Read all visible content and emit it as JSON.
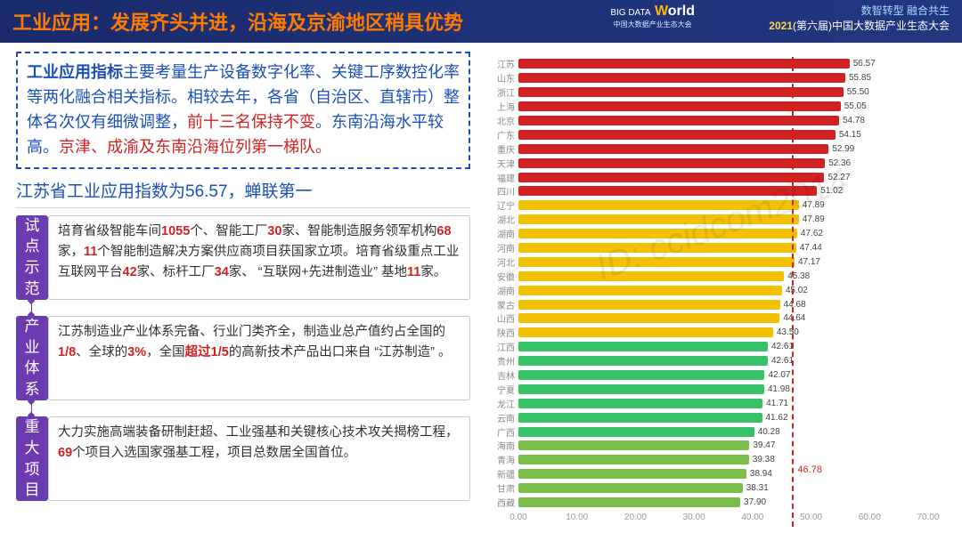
{
  "header": {
    "title": "工业应用：发展齐头并进，沿海及京渝地区稍具优势",
    "logo_big": "BIG DATA",
    "logo_world": "World",
    "logo_sub": "中国大数据产业生态大会",
    "right1": "数智转型  融合共生",
    "right2_pre": "2021",
    "right2_mid": "(第六届)",
    "right2_suf": "中国大数据产业生态大会"
  },
  "summary": {
    "lead": "工业应用指标",
    "t1": "主要考量生产设备数字化率、关键工序数控化率等两化融合相关指标。相较去年，各省（自治区、直辖市）整体名次仅有细微调整，",
    "r1": "前十三名保持不变",
    "t2": "。东南沿海水平较高。",
    "r2": "京津、成渝及东南沿海位列第一梯队。"
  },
  "subhead": "江苏省工业应用指数为56.57，蝉联第一",
  "blocks": [
    {
      "tag": "试点示范",
      "html": "培育省级智能车间<span class='r'>1055</span>个、智能工厂<span class='r'>30</span>家、智能制造服务领军机构<span class='r'>68</span>家，<span class='r'>11</span>个智能制造解决方案供应商项目获国家立项。培育省级重点工业互联网平台<span class='r'>42</span>家、标杆工厂<span class='r'>34</span>家、 “互联网+先进制造业” 基地<span class='r'>11</span>家。"
    },
    {
      "tag": "产业体系",
      "html": "江苏制造业产业体系完备、行业门类齐全，制造业总产值约占全国的<span class='r'>1/8</span>、全球的<span class='r'>3%</span>，全国<span class='r'>超过1/5</span>的高新技术产品出口来自 “江苏制造” 。"
    },
    {
      "tag": "重大项目",
      "html": "大力实施高端装备研制赶超、工业强基和关键核心技术攻关揭榜工程，<span class='r'>69</span>个项目入选国家强基工程，项目总数居全国首位。"
    }
  ],
  "chart": {
    "type": "horizontal-bar",
    "xlim": [
      0,
      70
    ],
    "ticks": [
      0,
      10,
      20,
      30,
      40,
      50,
      60,
      70
    ],
    "avg": 46.78,
    "background": "#ffffff",
    "categories": [
      "江苏",
      "山东",
      "浙江",
      "上海",
      "北京",
      "广东",
      "重庆",
      "天津",
      "福建",
      "四川",
      "辽宁",
      "湖北",
      "湖南",
      "河南",
      "河北",
      "安徽",
      "湖南",
      "蒙古",
      "山西",
      "陕西",
      "江西",
      "贵州",
      "吉林",
      "宁夏",
      "龙江",
      "云南",
      "广西",
      "海南",
      "青海",
      "新疆",
      "甘肃",
      "西藏"
    ],
    "values": [
      56.57,
      55.85,
      55.5,
      55.05,
      54.78,
      54.15,
      52.99,
      52.36,
      52.27,
      51.02,
      47.89,
      47.89,
      47.62,
      47.44,
      47.17,
      45.38,
      45.02,
      44.68,
      44.64,
      43.5,
      42.61,
      42.61,
      42.07,
      41.98,
      41.71,
      41.62,
      40.28,
      39.47,
      39.38,
      38.94,
      38.31,
      37.9
    ],
    "colors": [
      "#d12222",
      "#d12222",
      "#d12222",
      "#d12222",
      "#d12222",
      "#d12222",
      "#d12222",
      "#d12222",
      "#d12222",
      "#d12222",
      "#f2c200",
      "#f2c200",
      "#f2c200",
      "#f2c200",
      "#f2c200",
      "#f2c200",
      "#f2c200",
      "#f2c200",
      "#f2c200",
      "#f2c200",
      "#38c268",
      "#38c268",
      "#38c268",
      "#38c268",
      "#38c268",
      "#38c268",
      "#38c268",
      "#7bbf4a",
      "#7bbf4a",
      "#7bbf4a",
      "#7bbf4a",
      "#7bbf4a"
    ],
    "label_fontsize": 10,
    "value_fontsize": 10,
    "cat_color": "#8a8a8a"
  },
  "watermark": "ID: ccidcom2014"
}
